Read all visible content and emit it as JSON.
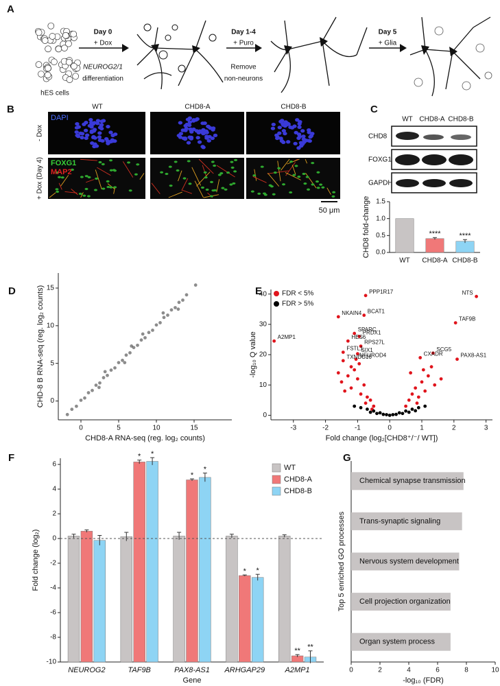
{
  "figure": {
    "panel_a": {
      "panel": "A",
      "start_label": "hES cells",
      "steps": [
        {
          "day": "Day 0",
          "action": "+ Dox",
          "note_italic": "NEUROG2/1",
          "note": "differentiation"
        },
        {
          "day": "Day 1-4",
          "action": "+ Puro",
          "note": [
            "Remove",
            "non-neurons"
          ]
        },
        {
          "day": "Day 5",
          "action": "+ Glia"
        }
      ]
    },
    "panel_b": {
      "panel": "B",
      "columns": [
        "WT",
        "CHD8-A",
        "CHD8-B"
      ],
      "rows": [
        "- Dox",
        "+ Dox (Day 4)"
      ],
      "stain_top": "DAPI",
      "stain_bottom": [
        "FOXG1",
        "MAP2"
      ],
      "scale_bar": "50 μm"
    },
    "panel_c_blot": {
      "panel": "C",
      "columns": [
        "WT",
        "CHD8-A",
        "CHD8-B"
      ],
      "bands": [
        "CHD8",
        "FOXG1",
        "GAPDH"
      ]
    }
  },
  "chart_data": [
    {
      "type": "bar",
      "ylabel": "CHD8 fold-change",
      "categories": [
        "WT",
        "CHD8-A",
        "CHD8-B"
      ],
      "values": [
        1.0,
        0.41,
        0.33
      ],
      "errors": [
        null,
        0.03,
        0.05
      ],
      "colors": [
        "#c8c4c4",
        "#f07878",
        "#8ed4f4"
      ],
      "significance": [
        null,
        "****",
        "****"
      ],
      "ylim": [
        0,
        1.5
      ],
      "yticks": [
        {
          "value": 0,
          "label": "0.0"
        },
        0.5,
        {
          "value": 1,
          "label": "1.0"
        },
        1.5
      ]
    },
    {
      "type": "scatter",
      "panel": "D",
      "xlabel": "CHD8-A RNA-seq (reg. log₂ counts)",
      "ylabel": "CHD-8 B RNA-seq (reg. log₂ counts)",
      "series": [
        {
          "color": "#000000",
          "x": [
            -1.8,
            -1.2,
            -0.6,
            0,
            0.5,
            1,
            1.5,
            2,
            2.5,
            3,
            3.5,
            4,
            4.5,
            5,
            5.5,
            6,
            6.5,
            7,
            7.5,
            8,
            8.5,
            9,
            9.5,
            10,
            10.5,
            11,
            11.5,
            12,
            12.5,
            13,
            13.5,
            14,
            15.2,
            3.2,
            5.8,
            8.2,
            2.4,
            10.9,
            6.7,
            12.9
          ],
          "values": [
            -1.8,
            -1.1,
            -0.7,
            0.1,
            0.4,
            1.1,
            1.4,
            2.1,
            2.4,
            3.1,
            3.4,
            4.1,
            4.4,
            5.1,
            5.4,
            6.1,
            6.4,
            7.1,
            7.4,
            8.1,
            8.4,
            9.1,
            9.4,
            10.1,
            10.4,
            11.1,
            11.4,
            12.1,
            12.4,
            13.1,
            13.4,
            14.1,
            15.4,
            3.9,
            5.1,
            8.9,
            1.8,
            11.7,
            7.3,
            12.2
          ]
        }
      ],
      "xlim": [
        -3,
        20
      ],
      "xticks": [
        0,
        5,
        10,
        15
      ],
      "ylim": [
        -2.5,
        17
      ],
      "yticks": [
        0,
        5,
        10,
        15
      ]
    },
    {
      "type": "scatter",
      "panel": "E",
      "xlabel": "Fold change (log₂[CHD8⁺/⁻/ WT])",
      "ylabel": "-log₁₀ Q value",
      "legend": "upper left",
      "series": [
        {
          "name": "FDR < 5%",
          "color": "#e0141c",
          "x": [
            -0.75,
            2.7,
            -0.8,
            -1.6,
            2.05,
            -1.1,
            -0.95,
            -1.3,
            -3.6,
            -0.9,
            1.35,
            -1.45,
            -1.0,
            0.95,
            -1.05,
            -1.45,
            2.1,
            -1.5,
            -1.3,
            -1.2,
            -1.1,
            -1.0,
            -0.9,
            -0.8,
            -0.7,
            -0.6,
            -0.5,
            -1.4,
            -1.2,
            -0.95,
            -0.75,
            -0.55,
            -1.6,
            0.5,
            0.6,
            0.7,
            0.8,
            0.9,
            1.0,
            1.1,
            1.2,
            1.4,
            1.6,
            0.65,
            0.85,
            1.05,
            1.3
          ],
          "values": [
            39.5,
            39.2,
            33,
            32.5,
            30.5,
            27,
            26,
            24.5,
            24.5,
            22.8,
            20.5,
            20.8,
            20.3,
            19,
            18.5,
            18,
            18.5,
            11,
            13,
            9,
            15,
            12,
            7,
            10,
            6,
            5,
            3,
            8,
            16,
            17,
            4,
            2,
            14,
            3,
            5,
            7,
            9,
            6,
            11,
            8,
            13,
            10,
            12,
            14,
            4,
            15,
            16
          ],
          "labels": [
            "PPP1R17",
            "NTS",
            "BCAT1",
            "NKAIN4",
            "TAF9B",
            "SPARC",
            "PRDX1",
            "HES6",
            "A2MP1",
            "RPS27L",
            "SCG5",
            "FSTL1",
            "SIX1",
            "CXADR",
            "NEUROD4",
            "TXNDC16",
            "PAX8-AS1",
            null,
            null,
            null,
            null,
            null,
            null,
            null,
            null,
            null,
            null,
            null,
            null,
            null,
            null,
            null,
            null,
            null,
            null,
            null,
            null,
            null,
            null,
            null,
            null,
            null,
            null,
            null,
            null,
            null,
            null
          ]
        },
        {
          "name": "FDR > 5%",
          "color": "#000000",
          "x": [
            -0.9,
            -0.7,
            -0.5,
            -0.3,
            -0.1,
            0.1,
            0.3,
            0.5,
            0.7,
            0.9,
            -0.6,
            -0.2,
            0.2,
            0.6,
            -0.4,
            0.4,
            0,
            -1.1,
            1.1,
            0.8
          ],
          "values": [
            2.5,
            2,
            1.4,
            0.8,
            0.2,
            0.2,
            0.8,
            1.4,
            2,
            2.5,
            1,
            0.3,
            0.3,
            1,
            0.6,
            0.6,
            0,
            3,
            3,
            1.5
          ]
        }
      ],
      "xlim": [
        -3.7,
        3.2
      ],
      "xticks": [
        -3,
        -2,
        -1,
        0,
        1,
        2,
        3
      ],
      "ylim": [
        -1.5,
        41.5
      ],
      "yticks": [
        0,
        10,
        20,
        30,
        40
      ]
    },
    {
      "type": "bar",
      "panel": "F",
      "xlabel": "Gene",
      "ylabel": "Fold change (log₂)",
      "legend": "upper right",
      "categories": [
        "NEUROG2",
        "TAF9B",
        "PAX8-AS1",
        "ARHGAP29",
        "A2MP1"
      ],
      "series": [
        {
          "name": "WT",
          "color": "#c8c4c4",
          "values": [
            0.2,
            0.15,
            0.2,
            0.2,
            0.2
          ],
          "errors": [
            0.15,
            0.35,
            0.3,
            0.15,
            0.1
          ]
        },
        {
          "name": "CHD8-A",
          "color": "#f07878",
          "values": [
            0.6,
            6.2,
            4.75,
            -3,
            -9.5
          ],
          "errors": [
            0.1,
            0.15,
            0.08,
            0.05,
            0.1
          ],
          "significance": [
            null,
            "*",
            "*",
            "*",
            "**"
          ]
        },
        {
          "name": "CHD8-B",
          "color": "#8ed4f4",
          "values": [
            -0.15,
            6.25,
            4.95,
            -3.15,
            -9.6
          ],
          "errors": [
            0.4,
            0.3,
            0.35,
            0.25,
            0.5
          ],
          "significance": [
            null,
            "*",
            "*",
            "*",
            "**"
          ]
        }
      ],
      "ylim": [
        -10,
        6.5
      ],
      "yticks": [
        -10,
        -8,
        -6,
        -4,
        -2,
        0,
        2,
        4,
        6
      ]
    },
    {
      "type": "barh",
      "panel": "G",
      "xlabel": "-log₁₀ (FDR)",
      "ylabel": "Top 5 enriched GO processes",
      "color": "#c8c4c4",
      "categories": [
        "Chemical synapse transmission",
        "Trans-synaptic signaling",
        "Nervous system development",
        "Cell projection organization",
        "Organ system process"
      ],
      "values": [
        7.8,
        7.7,
        7.5,
        6.9,
        6.9
      ],
      "xlim": [
        0,
        10
      ],
      "xticks": [
        0,
        2,
        4,
        6,
        8,
        10
      ]
    }
  ]
}
